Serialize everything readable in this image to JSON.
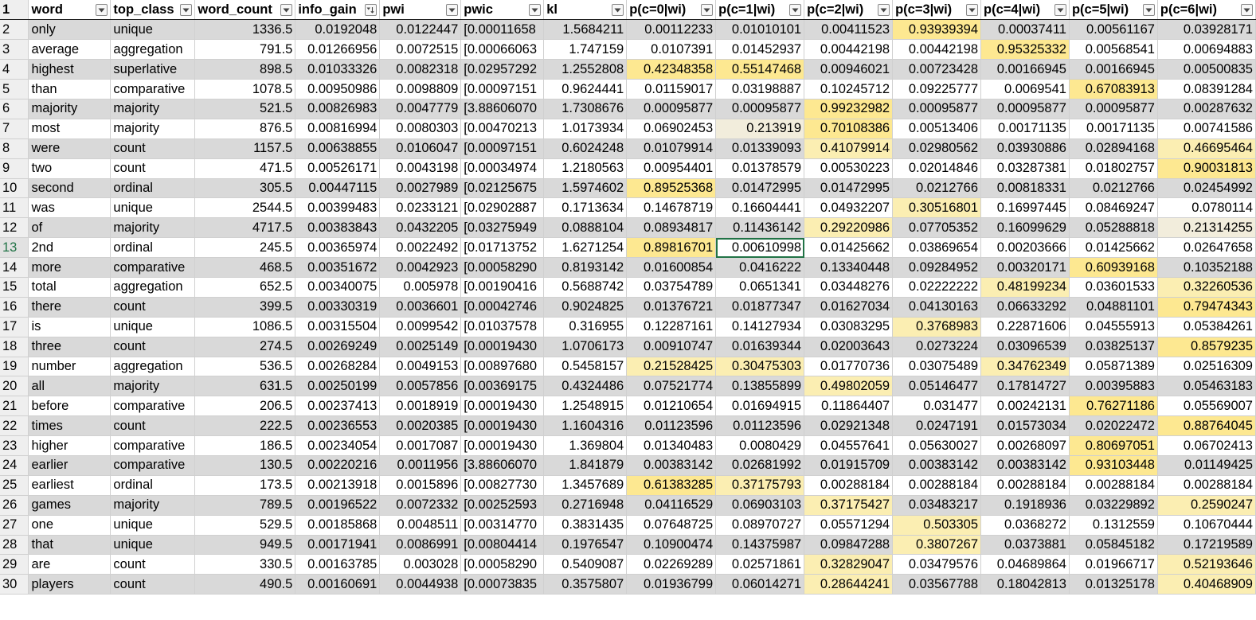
{
  "headers": [
    "word",
    "top_class",
    "word_count",
    "info_gain",
    "pwi",
    "pwic",
    "kl",
    "p(c=0|wi)",
    "p(c=1|wi)",
    "p(c=2|wi)",
    "p(c=3|wi)",
    "p(c=4|wi)",
    "p(c=5|wi)",
    "p(c=6|wi)"
  ],
  "sort_column": "info_gain",
  "selected_cell": {
    "row": 13,
    "col": "p(c=1|wi)"
  },
  "highlight_colors": {
    "strong": "#fde891",
    "light": "#fbeeb2",
    "faint": "#f2eddc",
    "band": "#d9d9d9",
    "active_border": "#217346"
  },
  "rows": [
    {
      "n": "2",
      "v": [
        "only",
        "unique",
        "1336.5",
        "0.0192048",
        "0.0122447",
        "[0.00011658",
        "1.5684211",
        "0.00112233",
        "0.01010101",
        "0.00411523",
        "0.93939394",
        "0.00037411",
        "0.00561167",
        "0.03928171"
      ],
      "hl": [
        10
      ]
    },
    {
      "n": "3",
      "v": [
        "average",
        "aggregation",
        "791.5",
        "0.01266956",
        "0.0072515",
        "[0.00066063",
        "1.747159",
        "0.0107391",
        "0.01452937",
        "0.00442198",
        "0.00442198",
        "0.95325332",
        "0.00568541",
        "0.00694883"
      ],
      "hl": [
        11
      ]
    },
    {
      "n": "4",
      "v": [
        "highest",
        "superlative",
        "898.5",
        "0.01033326",
        "0.0082318",
        "[0.02957292",
        "1.2552808",
        "0.42348358",
        "0.55147468",
        "0.00946021",
        "0.00723428",
        "0.00166945",
        "0.00166945",
        "0.00500835"
      ],
      "hl": [
        7,
        8
      ]
    },
    {
      "n": "5",
      "v": [
        "than",
        "comparative",
        "1078.5",
        "0.00950986",
        "0.0098809",
        "[0.00097151",
        "0.9624441",
        "0.01159017",
        "0.03198887",
        "0.10245712",
        "0.09225777",
        "0.0069541",
        "0.67083913",
        "0.08391284"
      ],
      "hl": [
        12
      ]
    },
    {
      "n": "6",
      "v": [
        "majority",
        "majority",
        "521.5",
        "0.00826983",
        "0.0047779",
        "[3.88606070",
        "1.7308676",
        "0.00095877",
        "0.00095877",
        "0.99232982",
        "0.00095877",
        "0.00095877",
        "0.00095877",
        "0.00287632"
      ],
      "hl": [
        9
      ]
    },
    {
      "n": "7",
      "v": [
        "most",
        "majority",
        "876.5",
        "0.00816994",
        "0.0080303",
        "[0.00470213",
        "1.0173934",
        "0.06902453",
        "0.213919",
        "0.70108386",
        "0.00513406",
        "0.00171135",
        "0.00171135",
        "0.00741586"
      ],
      "hl": [
        9
      ],
      "faint": [
        8
      ]
    },
    {
      "n": "8",
      "v": [
        "were",
        "count",
        "1157.5",
        "0.00638855",
        "0.0106047",
        "[0.00097151",
        "0.6024248",
        "0.01079914",
        "0.01339093",
        "0.41079914",
        "0.02980562",
        "0.03930886",
        "0.02894168",
        "0.46695464"
      ],
      "hl": [
        9,
        13
      ]
    },
    {
      "n": "9",
      "v": [
        "two",
        "count",
        "471.5",
        "0.00526171",
        "0.0043198",
        "[0.00034974",
        "1.2180563",
        "0.00954401",
        "0.01378579",
        "0.00530223",
        "0.02014846",
        "0.03287381",
        "0.01802757",
        "0.90031813"
      ],
      "hl": [
        13
      ]
    },
    {
      "n": "10",
      "v": [
        "second",
        "ordinal",
        "305.5",
        "0.00447115",
        "0.0027989",
        "[0.02125675",
        "1.5974602",
        "0.89525368",
        "0.01472995",
        "0.01472995",
        "0.0212766",
        "0.00818331",
        "0.0212766",
        "0.02454992"
      ],
      "hl": [
        7
      ]
    },
    {
      "n": "11",
      "v": [
        "was",
        "unique",
        "2544.5",
        "0.00399483",
        "0.0233121",
        "[0.02902887",
        "0.1713634",
        "0.14678719",
        "0.16604441",
        "0.04932207",
        "0.30516801",
        "0.16997445",
        "0.08469247",
        "0.0780114"
      ],
      "hl": [
        10
      ]
    },
    {
      "n": "12",
      "v": [
        "of",
        "majority",
        "4717.5",
        "0.00383843",
        "0.0432205",
        "[0.03275949",
        "0.0888104",
        "0.08934817",
        "0.11436142",
        "0.29220986",
        "0.07705352",
        "0.16099629",
        "0.05288818",
        "0.21314255"
      ],
      "hl": [
        9
      ],
      "faint": [
        13
      ]
    },
    {
      "n": "13",
      "v": [
        "2nd",
        "ordinal",
        "245.5",
        "0.00365974",
        "0.0022492",
        "[0.01713752",
        "1.6271254",
        "0.89816701",
        "0.00610998",
        "0.01425662",
        "0.03869654",
        "0.00203666",
        "0.01425662",
        "0.02647658"
      ],
      "hl": [
        7
      ]
    },
    {
      "n": "14",
      "v": [
        "more",
        "comparative",
        "468.5",
        "0.00351672",
        "0.0042923",
        "[0.00058290",
        "0.8193142",
        "0.01600854",
        "0.0416222",
        "0.13340448",
        "0.09284952",
        "0.00320171",
        "0.60939168",
        "0.10352188"
      ],
      "hl": [
        12
      ]
    },
    {
      "n": "15",
      "v": [
        "total",
        "aggregation",
        "652.5",
        "0.00340075",
        "0.005978",
        "[0.00190416",
        "0.5688742",
        "0.03754789",
        "0.0651341",
        "0.03448276",
        "0.02222222",
        "0.48199234",
        "0.03601533",
        "0.32260536"
      ],
      "hl": [
        11,
        13
      ]
    },
    {
      "n": "16",
      "v": [
        "there",
        "count",
        "399.5",
        "0.00330319",
        "0.0036601",
        "[0.00042746",
        "0.9024825",
        "0.01376721",
        "0.01877347",
        "0.01627034",
        "0.04130163",
        "0.06633292",
        "0.04881101",
        "0.79474343"
      ],
      "hl": [
        13
      ]
    },
    {
      "n": "17",
      "v": [
        "is",
        "unique",
        "1086.5",
        "0.00315504",
        "0.0099542",
        "[0.01037578",
        "0.316955",
        "0.12287161",
        "0.14127934",
        "0.03083295",
        "0.3768983",
        "0.22871606",
        "0.04555913",
        "0.05384261"
      ],
      "hl": [
        10
      ]
    },
    {
      "n": "18",
      "v": [
        "three",
        "count",
        "274.5",
        "0.00269249",
        "0.0025149",
        "[0.00019430",
        "1.0706173",
        "0.00910747",
        "0.01639344",
        "0.02003643",
        "0.0273224",
        "0.03096539",
        "0.03825137",
        "0.8579235"
      ],
      "hl": [
        13
      ]
    },
    {
      "n": "19",
      "v": [
        "number",
        "aggregation",
        "536.5",
        "0.00268284",
        "0.0049153",
        "[0.00897680",
        "0.5458157",
        "0.21528425",
        "0.30475303",
        "0.01770736",
        "0.03075489",
        "0.34762349",
        "0.05871389",
        "0.02516309"
      ],
      "hl": [
        7,
        8,
        11
      ]
    },
    {
      "n": "20",
      "v": [
        "all",
        "majority",
        "631.5",
        "0.00250199",
        "0.0057856",
        "[0.00369175",
        "0.4324486",
        "0.07521774",
        "0.13855899",
        "0.49802059",
        "0.05146477",
        "0.17814727",
        "0.00395883",
        "0.05463183"
      ],
      "hl": [
        9
      ]
    },
    {
      "n": "21",
      "v": [
        "before",
        "comparative",
        "206.5",
        "0.00237413",
        "0.0018919",
        "[0.00019430",
        "1.2548915",
        "0.01210654",
        "0.01694915",
        "0.11864407",
        "0.031477",
        "0.00242131",
        "0.76271186",
        "0.05569007"
      ],
      "hl": [
        12
      ]
    },
    {
      "n": "22",
      "v": [
        "times",
        "count",
        "222.5",
        "0.00236553",
        "0.0020385",
        "[0.00019430",
        "1.1604316",
        "0.01123596",
        "0.01123596",
        "0.02921348",
        "0.0247191",
        "0.01573034",
        "0.02022472",
        "0.88764045"
      ],
      "hl": [
        13
      ]
    },
    {
      "n": "23",
      "v": [
        "higher",
        "comparative",
        "186.5",
        "0.00234054",
        "0.0017087",
        "[0.00019430",
        "1.369804",
        "0.01340483",
        "0.0080429",
        "0.04557641",
        "0.05630027",
        "0.00268097",
        "0.80697051",
        "0.06702413"
      ],
      "hl": [
        12
      ]
    },
    {
      "n": "24",
      "v": [
        "earlier",
        "comparative",
        "130.5",
        "0.00220216",
        "0.0011956",
        "[3.88606070",
        "1.841879",
        "0.00383142",
        "0.02681992",
        "0.01915709",
        "0.00383142",
        "0.00383142",
        "0.93103448",
        "0.01149425"
      ],
      "hl": [
        12
      ]
    },
    {
      "n": "25",
      "v": [
        "earliest",
        "ordinal",
        "173.5",
        "0.00213918",
        "0.0015896",
        "[0.00827730",
        "1.3457689",
        "0.61383285",
        "0.37175793",
        "0.00288184",
        "0.00288184",
        "0.00288184",
        "0.00288184",
        "0.00288184"
      ],
      "hl": [
        7,
        8
      ]
    },
    {
      "n": "26",
      "v": [
        "games",
        "majority",
        "789.5",
        "0.00196522",
        "0.0072332",
        "[0.00252593",
        "0.2716948",
        "0.04116529",
        "0.06903103",
        "0.37175427",
        "0.03483217",
        "0.1918936",
        "0.03229892",
        "0.2590247"
      ],
      "hl": [
        9,
        13
      ]
    },
    {
      "n": "27",
      "v": [
        "one",
        "unique",
        "529.5",
        "0.00185868",
        "0.0048511",
        "[0.00314770",
        "0.3831435",
        "0.07648725",
        "0.08970727",
        "0.05571294",
        "0.503305",
        "0.0368272",
        "0.1312559",
        "0.10670444"
      ],
      "hl": [
        10
      ]
    },
    {
      "n": "28",
      "v": [
        "that",
        "unique",
        "949.5",
        "0.00171941",
        "0.0086991",
        "[0.00804414",
        "0.1976547",
        "0.10900474",
        "0.14375987",
        "0.09847288",
        "0.3807267",
        "0.0373881",
        "0.05845182",
        "0.17219589"
      ],
      "hl": [
        10
      ]
    },
    {
      "n": "29",
      "v": [
        "are",
        "count",
        "330.5",
        "0.00163785",
        "0.003028",
        "[0.00058290",
        "0.5409087",
        "0.02269289",
        "0.02571861",
        "0.32829047",
        "0.03479576",
        "0.04689864",
        "0.01966717",
        "0.52193646"
      ],
      "hl": [
        9,
        13
      ]
    },
    {
      "n": "30",
      "v": [
        "players",
        "count",
        "490.5",
        "0.00160691",
        "0.0044938",
        "[0.00073835",
        "0.3575807",
        "0.01936799",
        "0.06014271",
        "0.28644241",
        "0.03567788",
        "0.18042813",
        "0.01325178",
        "0.40468909"
      ],
      "hl": [
        9,
        13
      ]
    }
  ],
  "strong_cells": [
    "2:10",
    "3:11",
    "4:7",
    "4:8",
    "5:12",
    "6:9",
    "7:9",
    "9:13",
    "10:7",
    "13:7",
    "14:12",
    "16:13",
    "18:13",
    "21:12",
    "22:13",
    "23:12",
    "24:12",
    "25:7"
  ]
}
